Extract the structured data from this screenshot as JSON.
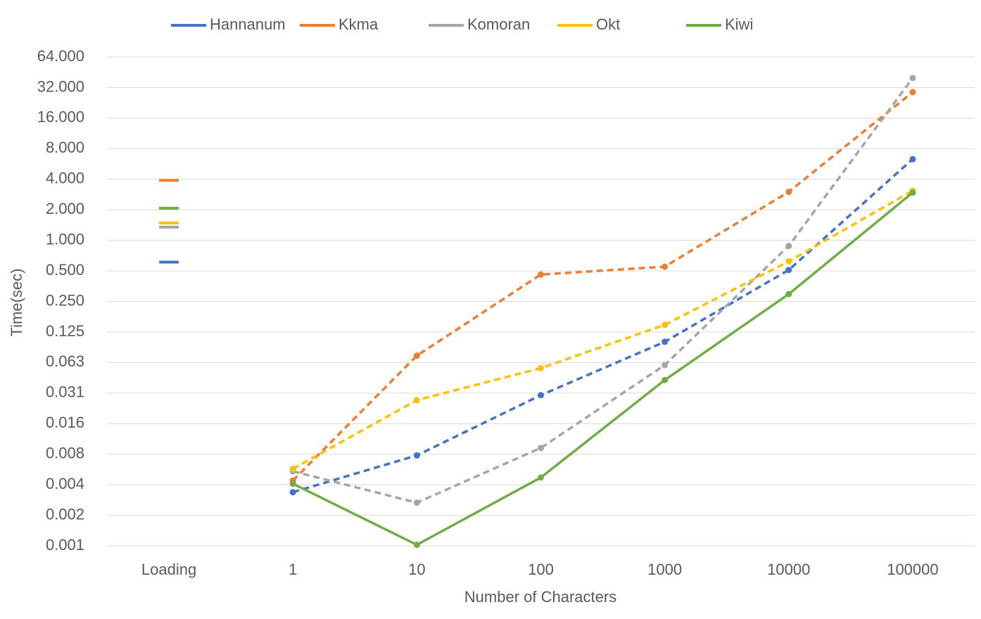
{
  "chart_data": {
    "type": "line",
    "xlabel": "Number of Characters",
    "ylabel": "Time(sec)",
    "categories": [
      "Loading",
      "1",
      "10",
      "100",
      "1000",
      "10000",
      "100000"
    ],
    "log_scale_y": 2,
    "grid": true,
    "legend": "top",
    "ylim": [
      0.0009765625,
      64
    ],
    "yticks": [
      {
        "value": 0.0009765625,
        "label": "0.001"
      },
      {
        "value": 0.001953125,
        "label": "0.002"
      },
      {
        "value": 0.00390625,
        "label": "0.004"
      },
      {
        "value": 0.0078125,
        "label": "0.008"
      },
      {
        "value": 0.015625,
        "label": "0.016"
      },
      {
        "value": 0.03125,
        "label": "0.031"
      },
      {
        "value": 0.0625,
        "label": "0.063"
      },
      0.125,
      {
        "value": 0.25,
        "label": "0.250"
      },
      {
        "value": 0.5,
        "label": "0.500"
      },
      {
        "value": 1,
        "label": "1.000"
      },
      {
        "value": 2,
        "label": "2.000"
      },
      {
        "value": 4,
        "label": "4.000"
      },
      {
        "value": 8,
        "label": "8.000"
      },
      {
        "value": 16,
        "label": "16.000"
      },
      {
        "value": 32,
        "label": "32.000"
      },
      {
        "value": 64,
        "label": "64.000"
      }
    ],
    "series": [
      {
        "name": "Hannanum",
        "color": "#4472c4",
        "line_style": "dashed",
        "values": [
          0.61,
          0.0033,
          0.0076,
          0.0298,
          0.1,
          0.51,
          6.3
        ]
      },
      {
        "name": "Kkma",
        "color": "#ed7d31",
        "line_style": "dashed",
        "values": [
          3.9,
          0.0043,
          0.073,
          0.46,
          0.55,
          3.0,
          28.8
        ]
      },
      {
        "name": "Komoran",
        "color": "#a5a5a5",
        "line_style": "dashed",
        "values": [
          1.35,
          0.0053,
          0.0026,
          0.009,
          0.059,
          0.88,
          39.7
        ]
      },
      {
        "name": "Okt",
        "color": "#ffc000",
        "line_style": "dashed",
        "values": [
          1.48,
          0.0056,
          0.0266,
          0.055,
          0.147,
          0.62,
          3.08
        ]
      },
      {
        "name": "Kiwi",
        "color": "#70ad47",
        "line_style": "solid",
        "values": [
          2.07,
          0.004,
          0.001,
          0.0046,
          0.042,
          0.295,
          2.95
        ]
      }
    ]
  }
}
